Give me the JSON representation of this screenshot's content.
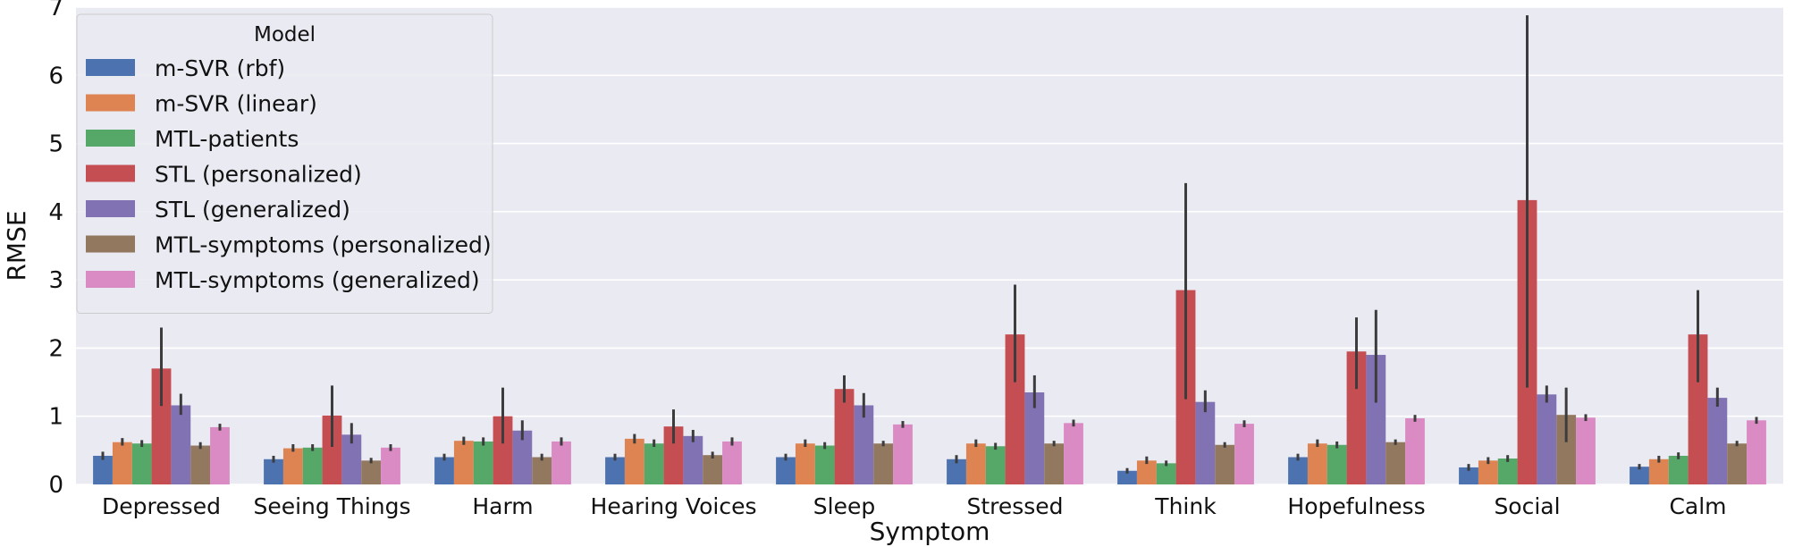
{
  "chart_data": {
    "type": "bar",
    "xlabel": "Symptom",
    "ylabel": "RMSE",
    "ylim": [
      0,
      7
    ],
    "yticks": [
      0,
      1,
      2,
      3,
      4,
      5,
      6,
      7
    ],
    "grid": true,
    "legend": {
      "title": "Model",
      "placement": "top-left"
    },
    "categories": [
      "Depressed",
      "Seeing Things",
      "Harm",
      "Hearing Voices",
      "Sleep",
      "Stressed",
      "Think",
      "Hopefulness",
      "Social",
      "Calm"
    ],
    "series": [
      {
        "name": "m-SVR (rbf)",
        "color": "#4c72b0",
        "values": [
          0.42,
          0.37,
          0.4,
          0.4,
          0.4,
          0.37,
          0.2,
          0.4,
          0.25,
          0.26
        ],
        "err_low": [
          0.36,
          0.32,
          0.35,
          0.35,
          0.35,
          0.31,
          0.16,
          0.35,
          0.2,
          0.22
        ],
        "err_high": [
          0.48,
          0.42,
          0.45,
          0.45,
          0.45,
          0.43,
          0.24,
          0.45,
          0.3,
          0.3
        ]
      },
      {
        "name": "m-SVR (linear)",
        "color": "#dd8452",
        "values": [
          0.62,
          0.53,
          0.64,
          0.67,
          0.6,
          0.6,
          0.35,
          0.6,
          0.35,
          0.37
        ],
        "err_low": [
          0.57,
          0.48,
          0.58,
          0.6,
          0.55,
          0.55,
          0.3,
          0.55,
          0.3,
          0.32
        ],
        "err_high": [
          0.68,
          0.59,
          0.7,
          0.74,
          0.66,
          0.66,
          0.41,
          0.66,
          0.4,
          0.42
        ]
      },
      {
        "name": "MTL-patients",
        "color": "#55a868",
        "values": [
          0.6,
          0.54,
          0.63,
          0.6,
          0.57,
          0.56,
          0.31,
          0.58,
          0.38,
          0.42
        ],
        "err_low": [
          0.55,
          0.49,
          0.57,
          0.55,
          0.52,
          0.51,
          0.27,
          0.53,
          0.33,
          0.37
        ],
        "err_high": [
          0.65,
          0.59,
          0.69,
          0.66,
          0.62,
          0.61,
          0.35,
          0.63,
          0.43,
          0.47
        ]
      },
      {
        "name": "STL (personalized)",
        "color": "#c44e52",
        "values": [
          1.7,
          1.01,
          1.0,
          0.85,
          1.4,
          2.2,
          2.85,
          1.95,
          4.17,
          2.2
        ],
        "err_low": [
          1.15,
          0.55,
          0.6,
          0.6,
          1.2,
          1.5,
          1.25,
          1.4,
          1.42,
          1.5
        ],
        "err_high": [
          2.3,
          1.45,
          1.42,
          1.1,
          1.6,
          2.93,
          4.42,
          2.45,
          6.88,
          2.85
        ]
      },
      {
        "name": "STL (generalized)",
        "color": "#8172b3",
        "values": [
          1.16,
          0.73,
          0.79,
          0.71,
          1.16,
          1.35,
          1.21,
          1.9,
          1.32,
          1.27
        ],
        "err_low": [
          1.02,
          0.6,
          0.65,
          0.62,
          0.98,
          1.12,
          1.06,
          1.2,
          1.2,
          1.14
        ],
        "err_high": [
          1.33,
          0.9,
          0.94,
          0.8,
          1.34,
          1.6,
          1.38,
          2.56,
          1.45,
          1.42
        ]
      },
      {
        "name": "MTL-symptoms (personalized)",
        "color": "#937860",
        "values": [
          0.57,
          0.35,
          0.4,
          0.43,
          0.6,
          0.6,
          0.58,
          0.62,
          1.02,
          0.6
        ],
        "err_low": [
          0.52,
          0.31,
          0.35,
          0.38,
          0.56,
          0.56,
          0.54,
          0.58,
          0.62,
          0.56
        ],
        "err_high": [
          0.62,
          0.39,
          0.45,
          0.48,
          0.64,
          0.64,
          0.62,
          0.66,
          1.42,
          0.64
        ]
      },
      {
        "name": "MTL-symptoms (generalized)",
        "color": "#da8bc3",
        "values": [
          0.84,
          0.54,
          0.63,
          0.63,
          0.88,
          0.9,
          0.89,
          0.97,
          0.98,
          0.94
        ],
        "err_low": [
          0.79,
          0.49,
          0.57,
          0.57,
          0.83,
          0.85,
          0.84,
          0.92,
          0.93,
          0.89
        ],
        "err_high": [
          0.89,
          0.59,
          0.69,
          0.69,
          0.93,
          0.95,
          0.94,
          1.02,
          1.03,
          0.99
        ]
      }
    ]
  }
}
